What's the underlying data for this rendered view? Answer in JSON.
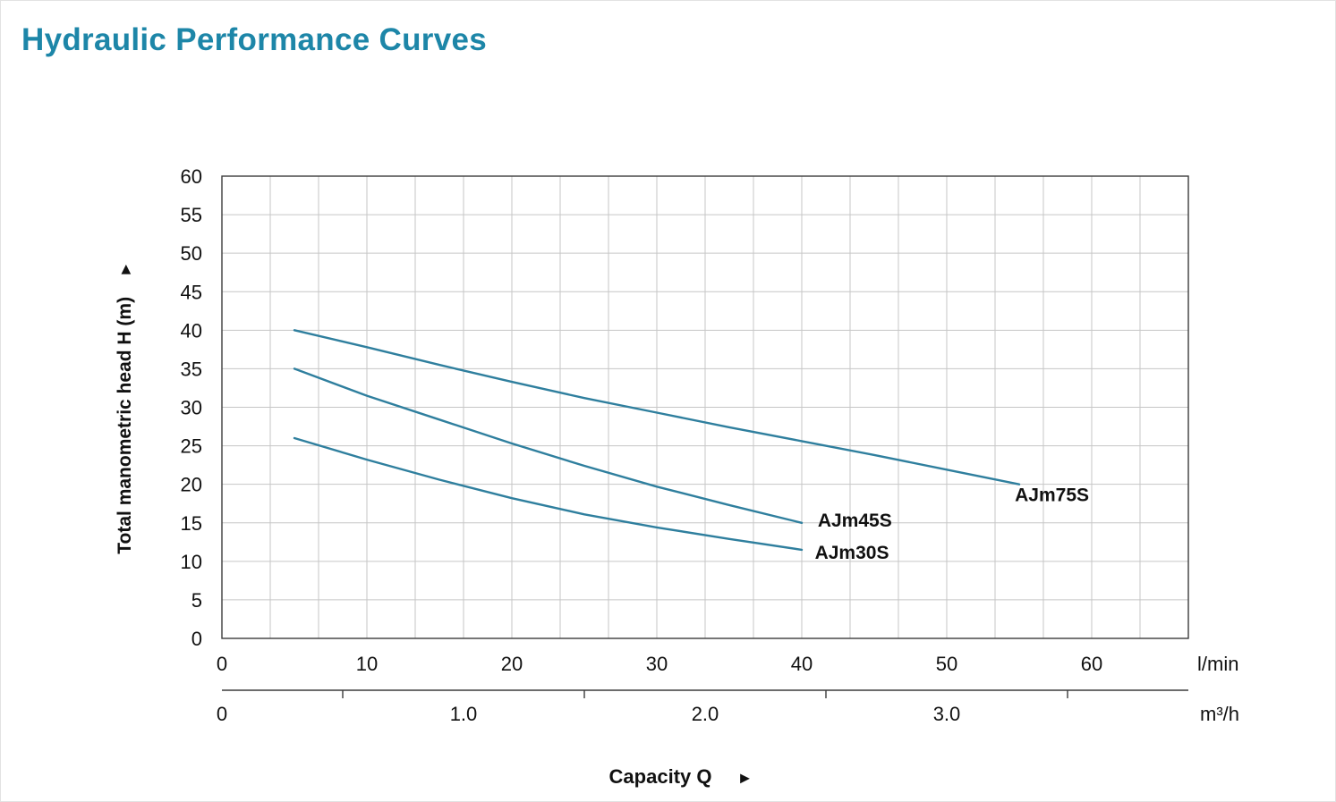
{
  "icons": {
    "y_axis_arrow": "►",
    "x_axis_arrow": "►"
  },
  "colors": {
    "title": "#1d86a8",
    "curve": "#2f7f9e",
    "grid": "#c6c6c6",
    "axis": "#3c3c3c",
    "text": "#111111"
  },
  "chart_data": {
    "type": "line",
    "title": "Hydraulic Performance Curves",
    "xlabel": "Capacity Q",
    "ylabel": "Total manometric head H (m)",
    "x_unit_primary": "l/min",
    "x_unit_secondary": "m³/h",
    "xlim": [
      0,
      66.667
    ],
    "ylim": [
      0,
      60
    ],
    "grid": true,
    "x_grid_step": 3.3333,
    "y_grid_step": 5,
    "y_ticks": [
      0,
      5,
      10,
      15,
      20,
      25,
      30,
      35,
      40,
      45,
      50,
      55,
      60
    ],
    "x_ticks_primary": [
      0,
      10,
      20,
      30,
      40,
      50,
      60
    ],
    "x_ticks_secondary": [
      {
        "value": 0,
        "label": "0"
      },
      {
        "value": 1,
        "label": "1.0"
      },
      {
        "value": 2,
        "label": "2.0"
      },
      {
        "value": 3,
        "label": "3.0"
      }
    ],
    "x_ticks_secondary_minor": [
      0.5,
      1.5,
      2.5,
      3.5
    ],
    "secondary_factor": 16.6667,
    "series": [
      {
        "name": "AJm75S",
        "points": [
          [
            5,
            40
          ],
          [
            10,
            37.8
          ],
          [
            15,
            35.5
          ],
          [
            20,
            33.3
          ],
          [
            25,
            31.2
          ],
          [
            30,
            29.3
          ],
          [
            35,
            27.4
          ],
          [
            40,
            25.6
          ],
          [
            45,
            23.8
          ],
          [
            50,
            21.9
          ],
          [
            55,
            20
          ]
        ],
        "label_pos": [
          54.7,
          17.8
        ]
      },
      {
        "name": "AJm45S",
        "points": [
          [
            5,
            35
          ],
          [
            10,
            31.5
          ],
          [
            15,
            28.4
          ],
          [
            20,
            25.3
          ],
          [
            25,
            22.4
          ],
          [
            30,
            19.7
          ],
          [
            35,
            17.3
          ],
          [
            40,
            15
          ]
        ],
        "label_pos": [
          41.1,
          14.5
        ]
      },
      {
        "name": "AJm30S",
        "points": [
          [
            5,
            26
          ],
          [
            10,
            23.2
          ],
          [
            15,
            20.6
          ],
          [
            20,
            18.2
          ],
          [
            25,
            16.1
          ],
          [
            30,
            14.4
          ],
          [
            35,
            12.9
          ],
          [
            40,
            11.5
          ]
        ],
        "label_pos": [
          40.9,
          10.3
        ]
      }
    ]
  }
}
